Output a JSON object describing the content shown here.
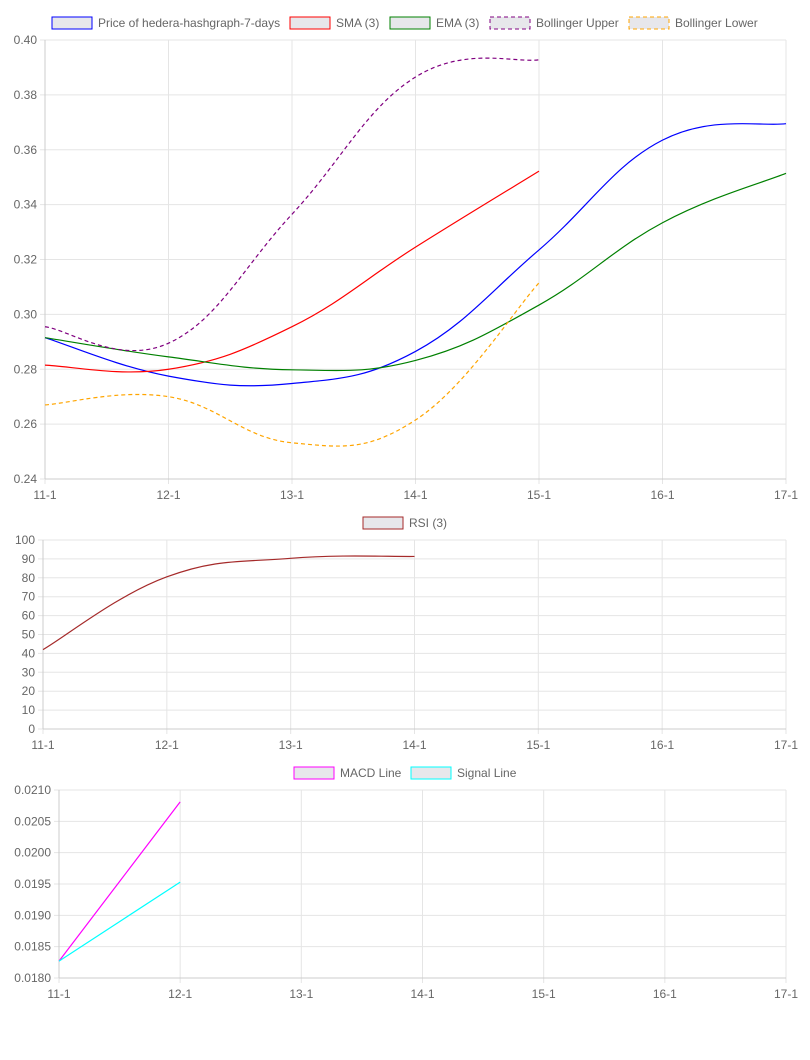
{
  "chart_data": [
    {
      "type": "line",
      "x": [
        "11-1",
        "12-1",
        "13-1",
        "14-1",
        "15-1",
        "16-1",
        "17-1"
      ],
      "ylim": [
        0.24,
        0.4
      ],
      "yticks": [
        "0.40",
        "0.38",
        "0.36",
        "0.34",
        "0.32",
        "0.30",
        "0.28",
        "0.26",
        "0.24"
      ],
      "ytick_values": [
        0.4,
        0.38,
        0.36,
        0.34,
        0.32,
        0.3,
        0.28,
        0.26,
        0.24
      ],
      "series": [
        {
          "name": "Price of hedera-hashgraph-7-days",
          "color": "#0000ff",
          "dashed": false,
          "values": [
            0.2915,
            0.2775,
            0.2748,
            0.2865,
            0.3235,
            0.3635,
            0.3695
          ]
        },
        {
          "name": "SMA (3)",
          "color": "#ff0000",
          "dashed": false,
          "values": [
            0.2815,
            0.28,
            0.2955,
            0.3245,
            0.3522,
            null,
            null
          ]
        },
        {
          "name": "EMA (3)",
          "color": "#008000",
          "dashed": false,
          "values": [
            0.2915,
            0.2845,
            0.2798,
            0.2832,
            0.3034,
            0.3334,
            0.3514
          ]
        },
        {
          "name": "Bollinger Upper",
          "color": "#800080",
          "dashed": true,
          "values": [
            0.2955,
            0.2895,
            0.3365,
            0.3865,
            0.3928,
            null,
            null
          ]
        },
        {
          "name": "Bollinger Lower",
          "color": "#ffa500",
          "dashed": true,
          "values": [
            0.267,
            0.27,
            0.2532,
            0.2615,
            0.3115,
            null,
            null
          ]
        }
      ]
    },
    {
      "type": "line",
      "x": [
        "11-1",
        "12-1",
        "13-1",
        "14-1",
        "15-1",
        "16-1",
        "17-1"
      ],
      "ylim": [
        0,
        100
      ],
      "yticks": [
        "100",
        "90",
        "80",
        "70",
        "60",
        "50",
        "40",
        "30",
        "20",
        "10",
        "0"
      ],
      "ytick_values": [
        100,
        90,
        80,
        70,
        60,
        50,
        40,
        30,
        20,
        10,
        0
      ],
      "series": [
        {
          "name": "RSI (3)",
          "color": "#a52a2a",
          "dashed": false,
          "values": [
            42,
            80.5,
            90.3,
            91.3,
            null,
            null,
            null
          ]
        }
      ]
    },
    {
      "type": "line",
      "x": [
        "11-1",
        "12-1",
        "13-1",
        "14-1",
        "15-1",
        "16-1",
        "17-1"
      ],
      "ylim": [
        0.018,
        0.021
      ],
      "yticks": [
        "0.0210",
        "0.0205",
        "0.0200",
        "0.0195",
        "0.0190",
        "0.0185",
        "0.0180"
      ],
      "ytick_values": [
        0.021,
        0.0205,
        0.02,
        0.0195,
        0.019,
        0.0185,
        0.018
      ],
      "series": [
        {
          "name": "MACD Line",
          "color": "#ff00ff",
          "dashed": false,
          "values": [
            0.01827,
            0.02081,
            null,
            null,
            null,
            null,
            null
          ]
        },
        {
          "name": "Signal Line",
          "color": "#00ffff",
          "dashed": false,
          "values": [
            0.01827,
            0.01953,
            null,
            null,
            null,
            null,
            null
          ]
        }
      ]
    }
  ]
}
